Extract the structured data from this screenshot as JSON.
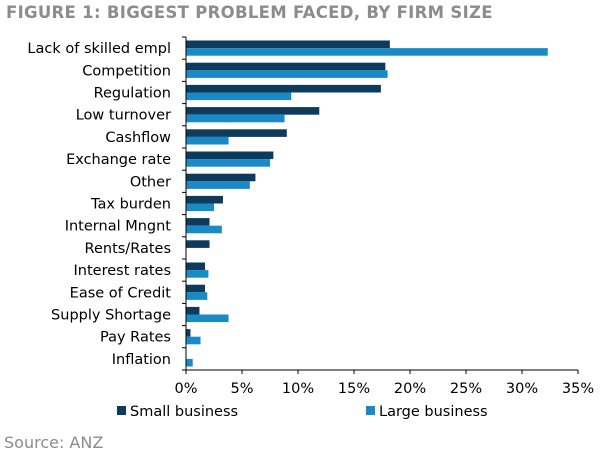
{
  "figure_title": "FIGURE 1: BIGGEST PROBLEM FACED, BY FIRM SIZE",
  "source": "Source: ANZ",
  "colors": {
    "small": "#0e3a5c",
    "large": "#1a8ac6"
  },
  "chart_data": {
    "type": "bar",
    "orientation": "horizontal",
    "categories": [
      "Lack of skilled empl",
      "Competition",
      "Regulation",
      "Low turnover",
      "Cashflow",
      "Exchange rate",
      "Other",
      "Tax burden",
      "Internal Mngnt",
      "Rents/Rates",
      "Interest rates",
      "Ease of Credit",
      "Supply Shortage",
      "Pay Rates",
      "Inflation"
    ],
    "series": [
      {
        "name": "Small business",
        "values": [
          18.2,
          17.8,
          17.4,
          11.9,
          9.0,
          7.8,
          6.2,
          3.3,
          2.1,
          2.1,
          1.7,
          1.7,
          1.2,
          0.4,
          0.0
        ]
      },
      {
        "name": "Large business",
        "values": [
          32.3,
          18.0,
          9.4,
          8.8,
          3.8,
          7.5,
          5.7,
          2.5,
          3.2,
          0.0,
          2.0,
          1.9,
          3.8,
          1.3,
          0.6
        ]
      }
    ],
    "xlim": [
      0,
      35
    ],
    "xticks": [
      "0%",
      "5%",
      "10%",
      "15%",
      "20%",
      "25%",
      "30%",
      "35%"
    ],
    "legend_position": "bottom",
    "grid": false
  }
}
